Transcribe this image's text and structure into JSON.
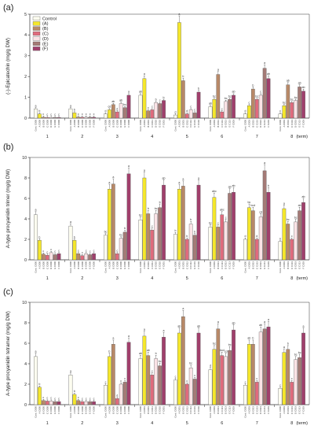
{
  "chart_data": {
    "type": "bar",
    "layout": "three stacked grouped-bar panels sharing the same 8 harvest terms",
    "legend": {
      "placement": "top-left inside panel (a)",
      "items": [
        "Control",
        "(A)",
        "(B)",
        "(C)",
        "(D)",
        "(E)",
        "(F)"
      ]
    },
    "colors": {
      "Control": "#fdfdf0",
      "A": "#f5e72b",
      "B": "#b88968",
      "C": "#e06b7d",
      "D": "#fbe3e6",
      "E": "#a47a76",
      "F": "#a03f6c"
    },
    "xlabel": "(term)",
    "terms": [
      "1",
      "2",
      "3",
      "4",
      "5",
      "6",
      "7",
      "8"
    ],
    "category_labels": [
      [
        "Cont. C000",
        "A C000",
        "B C000",
        "C C000",
        "D C000",
        "E C000",
        "F C000"
      ],
      [
        "Cont. C000",
        "A C000",
        "B C000",
        "C C000",
        "D C000",
        "E C000",
        "F C000"
      ],
      [
        "Cont. C000",
        "A C000",
        "B C000",
        "C C000",
        "D C000",
        "E C000",
        "F C000"
      ],
      [
        "Cont. C000",
        "A C001",
        "B C001",
        "C C011",
        "D C010",
        "E C010",
        "F C001"
      ],
      [
        "Cont. C000",
        "A C001",
        "B C001",
        "C C012",
        "D C112",
        "E C101",
        "F C102"
      ],
      [
        "Cont. C000",
        "A C003",
        "B C013",
        "C C113",
        "D C013",
        "E C113",
        "F C003"
      ],
      [
        "Cont. C000",
        "A C003",
        "B C023",
        "C C223",
        "D C023",
        "E C213",
        "F C203"
      ],
      [
        "Cont. C000",
        "A C003",
        "B C033",
        "C C333",
        "D C033",
        "E C313",
        "F C303"
      ]
    ],
    "panels": [
      {
        "label": "(a)",
        "ylabel": "(-)-Epicatechin (mg/g DW)",
        "ylim": [
          0,
          5
        ],
        "yticks": [
          0,
          1,
          2,
          3,
          4,
          5
        ],
        "grid": false,
        "values": [
          [
            0.45,
            0.2,
            0.04,
            0.03,
            0.03,
            0.03,
            0.03
          ],
          [
            0.45,
            0.25,
            0.05,
            0.04,
            0.04,
            0.04,
            0.04
          ],
          [
            0.2,
            0.4,
            0.65,
            0.3,
            0.7,
            0.5,
            1.1
          ],
          [
            1.1,
            1.9,
            0.35,
            0.4,
            0.75,
            0.7,
            0.85
          ],
          [
            0.15,
            4.6,
            1.8,
            0.2,
            0.4,
            0.25,
            1.25
          ],
          [
            0.55,
            0.9,
            2.1,
            0.3,
            0.8,
            0.9,
            1.1
          ],
          [
            0.2,
            0.6,
            1.4,
            0.9,
            1.1,
            2.4,
            1.9
          ],
          [
            0.2,
            0.6,
            1.6,
            0.75,
            0.85,
            1.5,
            1.3
          ]
        ],
        "letters": [
          [
            "a",
            "b",
            "c",
            "c",
            "c",
            "c",
            "c"
          ],
          [
            "a",
            "b",
            "c",
            "c",
            "c",
            "c",
            "c"
          ],
          [
            "d",
            "cd",
            "ab",
            "d",
            "ab",
            "bc",
            "a"
          ],
          [
            "ab",
            "a",
            "c",
            "c",
            "b",
            "c",
            "b"
          ],
          [
            "d",
            "a",
            "b",
            "d",
            "c",
            "c",
            "b"
          ],
          [
            "ab",
            "bc",
            "a",
            "c",
            "bc",
            "bc",
            "ab"
          ],
          [
            "d",
            "c",
            "b",
            "bc",
            "c",
            "a",
            "ab"
          ],
          [
            "c",
            "bc",
            "ab",
            "bc",
            "bc",
            "ab",
            "ab"
          ]
        ]
      },
      {
        "label": "(b)",
        "ylabel": "A-type procyanidin trimer (mg/g DW)",
        "ylim": [
          0,
          10
        ],
        "yticks": [
          0,
          2,
          4,
          6,
          8,
          10
        ],
        "grid": false,
        "values": [
          [
            4.4,
            1.9,
            0.55,
            0.45,
            0.7,
            0.5,
            0.6
          ],
          [
            3.3,
            1.9,
            0.6,
            0.4,
            0.6,
            0.5,
            0.6
          ],
          [
            2.4,
            6.9,
            7.4,
            0.6,
            2.1,
            2.7,
            8.4
          ],
          [
            3.9,
            8.0,
            4.5,
            2.9,
            4.5,
            5.1,
            7.3
          ],
          [
            2.5,
            6.9,
            7.2,
            2.0,
            3.5,
            2.4,
            7.3
          ],
          [
            3.2,
            6.1,
            3.2,
            4.4,
            3.7,
            6.5,
            6.6
          ],
          [
            2.0,
            5.1,
            4.8,
            2.0,
            4.2,
            8.7,
            6.6
          ],
          [
            1.8,
            5.0,
            3.5,
            2.0,
            3.7,
            4.8,
            5.6
          ]
        ],
        "letters": [
          [
            "a",
            "b",
            "c",
            "c",
            "c",
            "c",
            "c"
          ],
          [
            "a",
            "b",
            "c",
            "c",
            "c",
            "c",
            "c"
          ],
          [
            "bc",
            "a",
            "a",
            "c",
            "bc",
            "b",
            "a"
          ],
          [
            "bc",
            "a",
            "b",
            "c",
            "bc",
            "b",
            "ab"
          ],
          [
            "b",
            "a",
            "a",
            "b",
            "b",
            "b",
            "a"
          ],
          [
            "bc",
            "abc",
            "c",
            "abc",
            "c",
            "ab",
            "ab"
          ],
          [
            "d",
            "bc",
            "bcd",
            "d",
            "cd",
            "a",
            "b"
          ],
          [
            "c",
            "a",
            "bc",
            "c",
            "bc",
            "ab",
            "ab"
          ]
        ]
      },
      {
        "label": "(c)",
        "ylabel": "A-type procyanidin tetramer (mg/g DW)",
        "ylim": [
          0,
          10
        ],
        "yticks": [
          0,
          2,
          4,
          6,
          8,
          10
        ],
        "grid": false,
        "values": [
          [
            4.7,
            1.7,
            0.4,
            0.35,
            0.35,
            0.3,
            0.3
          ],
          [
            2.9,
            1.0,
            0.4,
            0.3,
            0.3,
            0.3,
            0.3
          ],
          [
            1.9,
            4.7,
            5.9,
            0.6,
            2.0,
            2.2,
            6.1
          ],
          [
            4.5,
            6.7,
            4.8,
            2.9,
            4.5,
            3.8,
            6.6
          ],
          [
            2.4,
            7.0,
            8.6,
            2.0,
            3.6,
            2.5,
            7.0
          ],
          [
            3.4,
            5.4,
            7.4,
            4.8,
            4.7,
            5.3,
            7.3
          ],
          [
            1.9,
            5.9,
            5.9,
            2.2,
            7.1,
            7.4,
            7.6
          ],
          [
            1.6,
            5.1,
            5.4,
            2.2,
            4.4,
            4.6,
            7.0
          ]
        ],
        "letters": [
          [
            "a",
            "b",
            "c",
            "c",
            "c",
            "c",
            "c"
          ],
          [
            "a",
            "b",
            "c",
            "c",
            "c",
            "c",
            "c"
          ],
          [
            "c",
            "b",
            "a",
            "d",
            "c",
            "c",
            "a"
          ],
          [
            "ab",
            "a",
            "ab",
            "c",
            "b",
            "bc",
            "a"
          ],
          [
            "c",
            "ab",
            "a",
            "c",
            "bc",
            "c",
            "ab"
          ],
          [
            "d",
            "bc",
            "a",
            "bcd",
            "cd",
            "bc",
            "ab"
          ],
          [
            "c",
            "ab",
            "b",
            "c",
            "ab",
            "a",
            "a"
          ],
          [
            "c",
            "a",
            "b",
            "c",
            "bc",
            "bc",
            "a"
          ]
        ]
      }
    ]
  }
}
